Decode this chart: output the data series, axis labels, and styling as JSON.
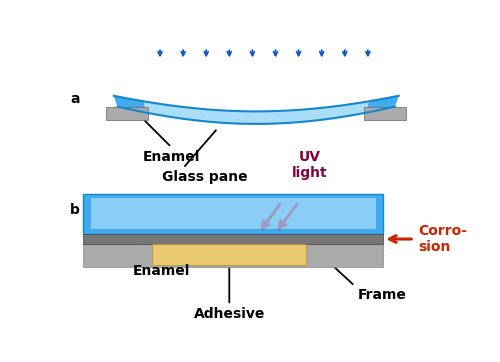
{
  "bg_color": "#ffffff",
  "blue_glass": "#42aaee",
  "blue_glass_light": "#aaddf8",
  "blue_glass_edge": "#1188cc",
  "gray_support": "#aaaaaa",
  "dark_gray_enamel": "#777777",
  "tan_adhesive": "#e8c870",
  "frame_gray": "#aaaaaa",
  "arrow_blue": "#1155cc",
  "uv_color": "#880044",
  "corrosion_color": "#cc2200",
  "label_color": "#000000",
  "label_a": "a",
  "label_b": "b",
  "label_enamel_a": "Enamel",
  "label_glass": "Glass pane",
  "label_uv": "UV\nlight",
  "label_corrosion": "Corro-\nsion",
  "label_enamel_b": "Enamel",
  "label_adhesive": "Adhesive",
  "label_frame": "Frame"
}
